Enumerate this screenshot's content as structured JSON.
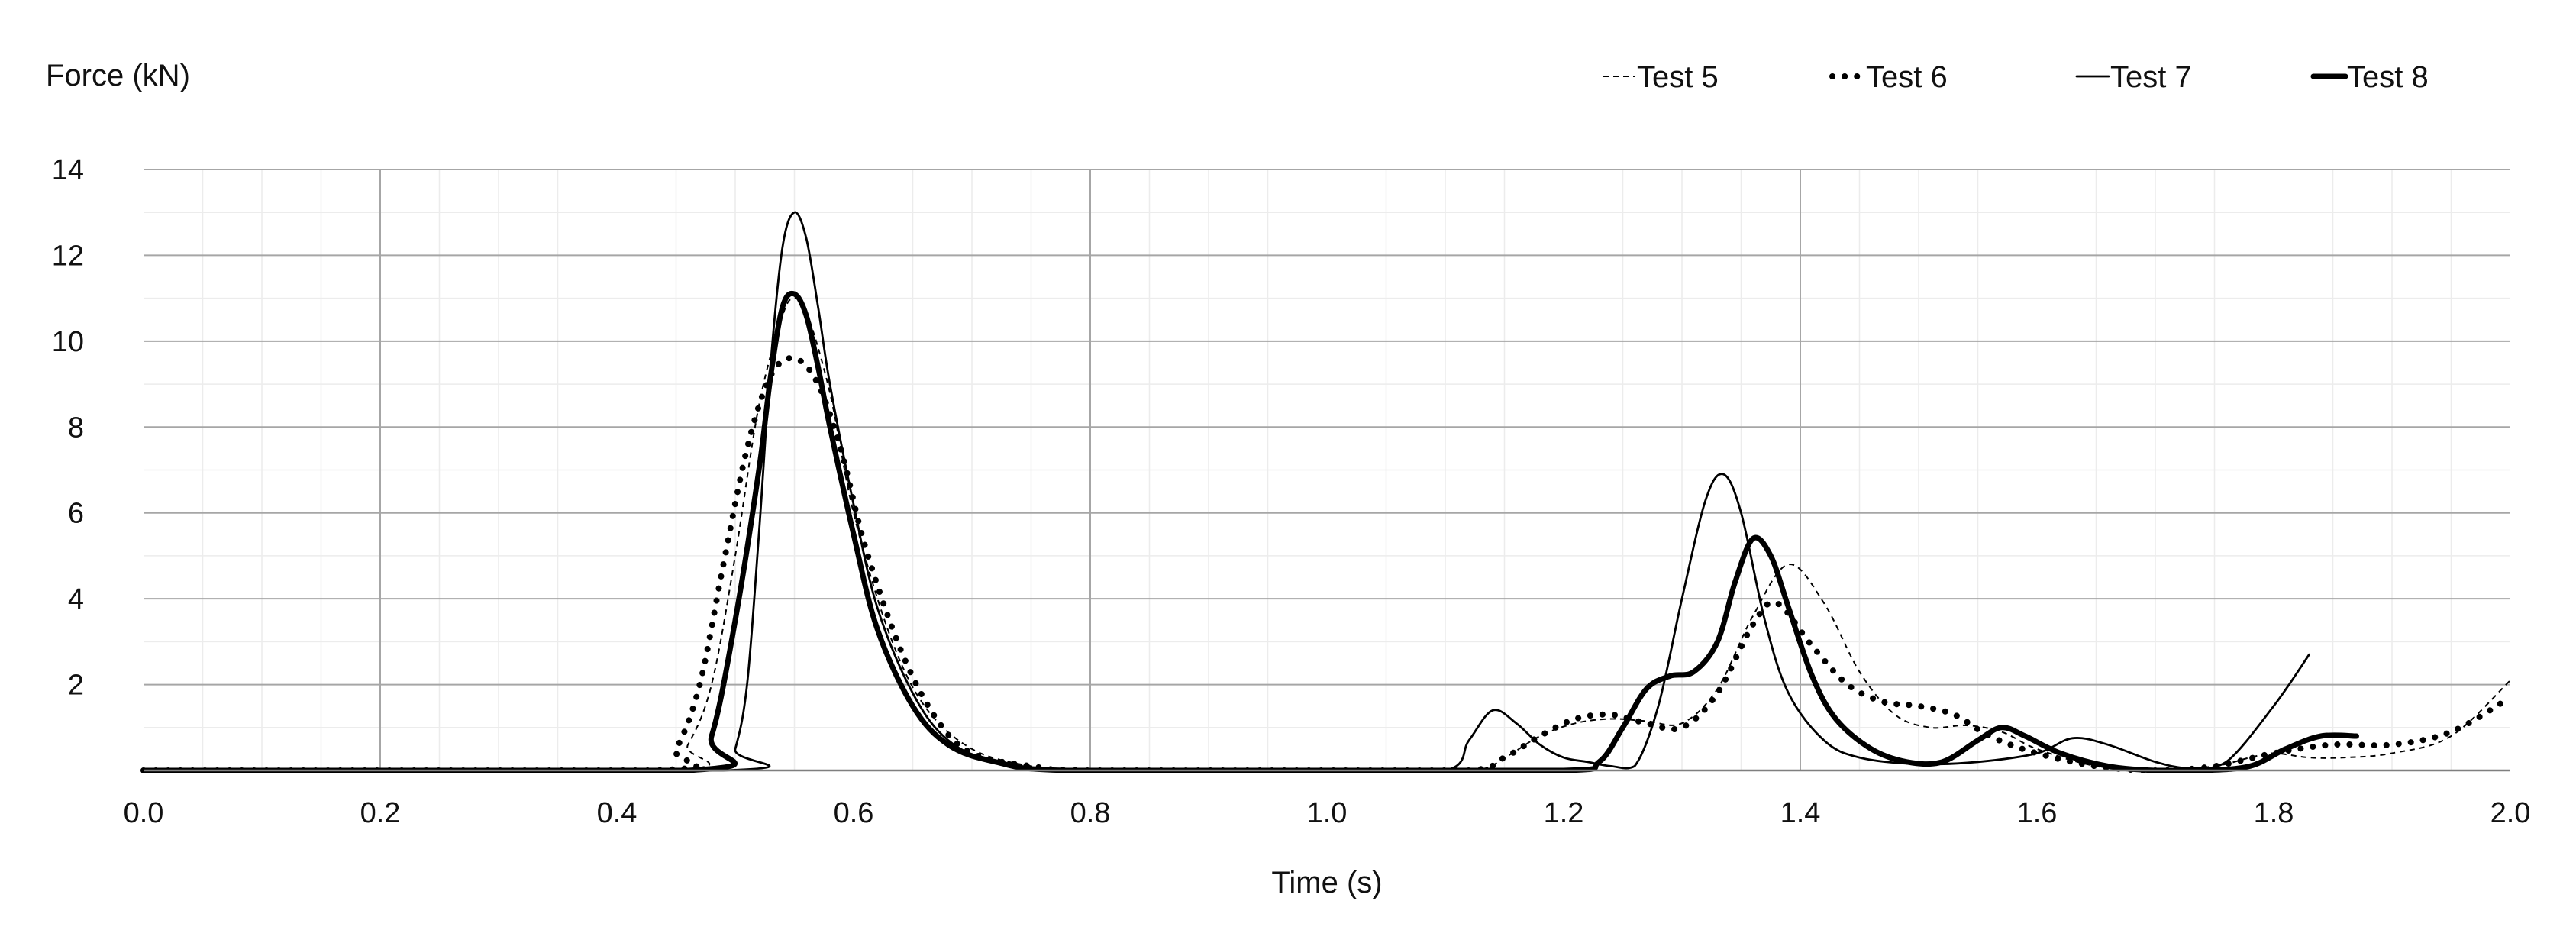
{
  "chart_data": {
    "type": "line",
    "title": "",
    "xlabel": "Time (s)",
    "ylabel": "Force (kN)",
    "xlim": [
      0,
      2.0
    ],
    "ylim": [
      0,
      14
    ],
    "x_ticks": [
      "0.0",
      "0.2",
      "0.4",
      "0.6",
      "0.8",
      "1.0",
      "1.2",
      "1.4",
      "1.6",
      "1.8",
      "2.0"
    ],
    "y_ticks": [
      "2",
      "4",
      "6",
      "8",
      "10",
      "12",
      "14"
    ],
    "grid": {
      "horizontal_major": true,
      "vertical_major": true,
      "vertical_major_at": [
        0.2,
        0.8,
        1.4
      ],
      "horizontal_minor": true,
      "vertical_minor": true
    },
    "legend_position": "top-right",
    "series": [
      {
        "name": "Test 5",
        "style": "dashed-thin",
        "color": "#000000",
        "x": [
          0.0,
          0.44,
          0.46,
          0.48,
          0.5,
          0.52,
          0.54,
          0.55,
          0.56,
          0.58,
          0.6,
          0.63,
          0.66,
          0.7,
          0.75,
          0.8,
          1.0,
          1.12,
          1.15,
          1.18,
          1.21,
          1.24,
          1.27,
          1.3,
          1.33,
          1.36,
          1.39,
          1.42,
          1.45,
          1.48,
          1.51,
          1.54,
          1.57,
          1.6,
          1.65,
          1.7,
          1.75,
          1.78,
          1.8,
          1.83,
          1.86,
          1.9,
          1.95,
          2.0
        ],
        "y": [
          0,
          0,
          0.6,
          2.0,
          5.0,
          8.5,
          10.6,
          11.0,
          10.7,
          8.8,
          6.0,
          3.2,
          1.5,
          0.5,
          0.1,
          0,
          0,
          0,
          0.3,
          0.8,
          1.1,
          1.2,
          1.15,
          1.1,
          1.9,
          3.6,
          4.8,
          3.9,
          2.3,
          1.3,
          1.0,
          1.05,
          0.9,
          0.5,
          0.1,
          0.0,
          0.1,
          0.3,
          0.4,
          0.3,
          0.3,
          0.4,
          0.8,
          2.1
        ]
      },
      {
        "name": "Test 6",
        "style": "dotted-bold",
        "color": "#000000",
        "x": [
          0.0,
          0.43,
          0.45,
          0.47,
          0.49,
          0.51,
          0.53,
          0.55,
          0.57,
          0.59,
          0.61,
          0.64,
          0.67,
          0.7,
          0.75,
          0.8,
          1.0,
          1.12,
          1.15,
          1.18,
          1.21,
          1.24,
          1.27,
          1.3,
          1.33,
          1.36,
          1.38,
          1.41,
          1.44,
          1.47,
          1.5,
          1.53,
          1.56,
          1.6,
          1.65,
          1.7,
          1.75,
          1.8,
          1.85,
          1.9,
          1.95,
          2.0
        ],
        "y": [
          0,
          0,
          0.5,
          2.0,
          4.8,
          7.5,
          9.2,
          9.6,
          9.0,
          7.4,
          5.2,
          2.8,
          1.2,
          0.4,
          0.1,
          0,
          0,
          0,
          0.3,
          0.8,
          1.2,
          1.3,
          1.1,
          1.0,
          1.8,
          3.4,
          3.9,
          2.9,
          2.0,
          1.6,
          1.5,
          1.3,
          0.8,
          0.4,
          0.1,
          0.0,
          0.1,
          0.4,
          0.6,
          0.6,
          0.9,
          1.7
        ]
      },
      {
        "name": "Test 7",
        "style": "solid-thin",
        "color": "#000000",
        "x": [
          0.0,
          0.49,
          0.5,
          0.51,
          0.52,
          0.53,
          0.54,
          0.55,
          0.56,
          0.57,
          0.58,
          0.6,
          0.62,
          0.65,
          0.68,
          0.72,
          0.78,
          1.0,
          1.1,
          1.12,
          1.14,
          1.16,
          1.18,
          1.2,
          1.22,
          1.24,
          1.26,
          1.28,
          1.3,
          1.32,
          1.335,
          1.35,
          1.37,
          1.39,
          1.42,
          1.45,
          1.5,
          1.55,
          1.6,
          1.63,
          1.66,
          1.7,
          1.73,
          1.76,
          1.8,
          1.83
        ],
        "y": [
          0,
          0,
          0.5,
          2.0,
          5.5,
          9.5,
          12.2,
          13.0,
          12.4,
          10.8,
          9.0,
          6.2,
          3.8,
          1.8,
          0.7,
          0.2,
          0,
          0,
          0,
          0.7,
          1.4,
          1.1,
          0.6,
          0.3,
          0.2,
          0.1,
          0.1,
          1.5,
          4.0,
          6.3,
          6.9,
          6.0,
          3.5,
          1.8,
          0.7,
          0.3,
          0.15,
          0.2,
          0.4,
          0.75,
          0.6,
          0.2,
          0.05,
          0.2,
          1.5,
          2.7
        ]
      },
      {
        "name": "Test 8",
        "style": "solid-bold",
        "color": "#000000",
        "x": [
          0.0,
          0.46,
          0.48,
          0.5,
          0.52,
          0.53,
          0.54,
          0.55,
          0.56,
          0.57,
          0.58,
          0.6,
          0.62,
          0.65,
          0.68,
          0.72,
          0.78,
          1.0,
          1.2,
          1.23,
          1.25,
          1.27,
          1.29,
          1.31,
          1.33,
          1.345,
          1.36,
          1.375,
          1.39,
          1.41,
          1.43,
          1.46,
          1.49,
          1.52,
          1.55,
          1.57,
          1.59,
          1.62,
          1.66,
          1.7,
          1.74,
          1.78,
          1.81,
          1.84,
          1.87
        ],
        "y": [
          0,
          0,
          0.8,
          3.5,
          7.0,
          9.2,
          10.8,
          11.1,
          10.6,
          9.4,
          8.0,
          5.5,
          3.3,
          1.5,
          0.6,
          0.2,
          0,
          0,
          0,
          0.2,
          1.0,
          1.9,
          2.2,
          2.3,
          3.0,
          4.4,
          5.4,
          5.0,
          3.8,
          2.2,
          1.2,
          0.5,
          0.2,
          0.2,
          0.7,
          1.0,
          0.8,
          0.4,
          0.1,
          0.0,
          0.0,
          0.1,
          0.5,
          0.8,
          0.8
        ]
      }
    ]
  }
}
